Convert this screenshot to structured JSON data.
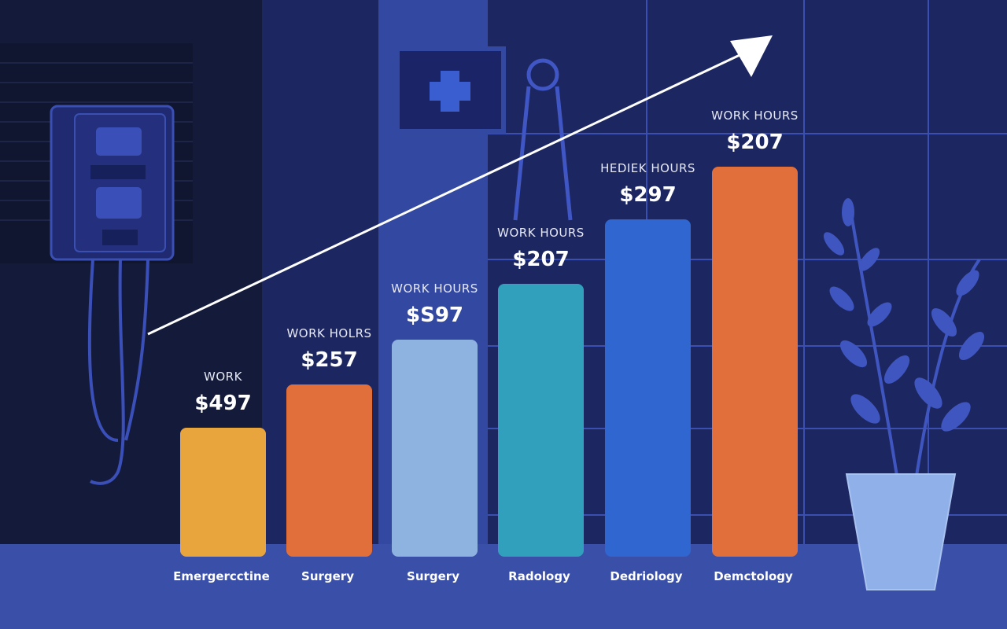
{
  "bars": [
    {
      "caption": "WORK",
      "amount": "$497",
      "category": "Emergercctine",
      "color": "#e8a53e"
    },
    {
      "caption": "WORK HOLRS",
      "amount": "$257",
      "category": "Surgery",
      "color": "#e06f3c"
    },
    {
      "caption": "WORK HOURS",
      "amount": "$S97",
      "category": "Surgery",
      "color": "#8fb3e0"
    },
    {
      "caption": "WORK HOURS",
      "amount": "$207",
      "category": "Radology",
      "color": "#31a0bd"
    },
    {
      "caption": "HEDIEK HOURS",
      "amount": "$297",
      "category": "Dedriology",
      "color": "#2f66d0"
    },
    {
      "caption": "WORK HOURS",
      "amount": "$207",
      "category": "Demctology",
      "color": "#e06f3c"
    }
  ]
}
